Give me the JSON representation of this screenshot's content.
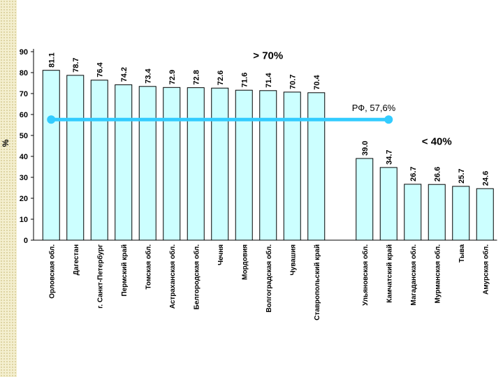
{
  "chart_data": {
    "type": "bar",
    "ylabel": "%",
    "ylim": [
      0,
      90
    ],
    "yticks": [
      0,
      10,
      20,
      30,
      40,
      50,
      60,
      70,
      80,
      90
    ],
    "grid": false,
    "bar_color": "#ccffff",
    "line_color": "#33ccff",
    "categories": [
      "Орловская обл.",
      "Дагестан",
      "г. Санкт-Петербург",
      "Пермский край",
      "Томская обл.",
      "Астраханская обл.",
      "Белгородская обл.",
      "Чечня",
      "Мордовия",
      "Волгоградская обл.",
      "Чувашия",
      "Ставропольский край",
      "",
      "Ульяновская обл.",
      "Камчатский край",
      "Магаданская обл.",
      "Мурманская обл.",
      "Тыва",
      "Амурская обл."
    ],
    "values": [
      81.1,
      78.7,
      76.4,
      74.2,
      73.4,
      72.9,
      72.8,
      72.6,
      71.6,
      71.4,
      70.7,
      70.4,
      null,
      39.0,
      34.7,
      26.7,
      26.6,
      25.7,
      24.6
    ],
    "value_labels": [
      "81.1",
      "78.7",
      "76.4",
      "74.2",
      "73.4",
      "72.9",
      "72.8",
      "72.6",
      "71.6",
      "71.4",
      "70.7",
      "70.4",
      "",
      "39.0",
      "34.7",
      "26.7",
      "26.6",
      "25.7",
      "24.6"
    ],
    "reference_line": {
      "label": "РФ, 57,6%",
      "value": 57.6,
      "from_index": 0,
      "to_index": 14
    },
    "annotations": [
      {
        "text": "> 70%",
        "index": 9,
        "value": 86.5
      },
      {
        "text": "< 40%",
        "index": 16,
        "value": 45.5
      }
    ]
  }
}
